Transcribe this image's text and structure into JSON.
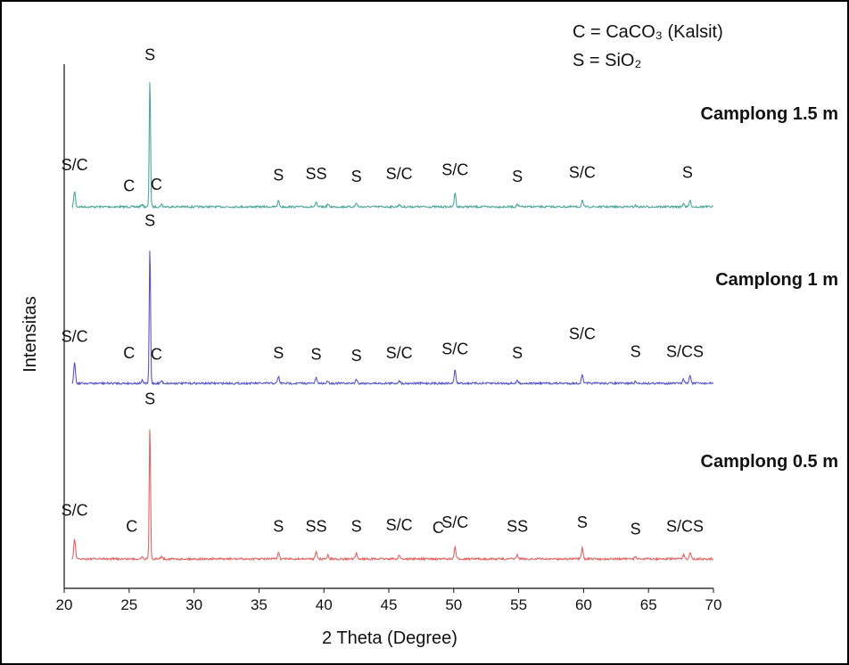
{
  "chart_data": {
    "type": "line",
    "xlabel": "2 Theta (Degree)",
    "ylabel": "Intensitas",
    "xlim": [
      20,
      70
    ],
    "x_ticks": [
      "20",
      "25",
      "30",
      "35",
      "40",
      "45",
      "50",
      "55",
      "60",
      "65",
      "70"
    ],
    "legend_lines": [
      "C = CaCO₃ (Kalsit)",
      "S = SiO₂"
    ],
    "series": [
      {
        "name": "Camplong 1.5 m",
        "color": "#4ca89a",
        "peaks": [
          {
            "x": 20.8,
            "h": 0.12
          },
          {
            "x": 26.0,
            "h": 0.02
          },
          {
            "x": 26.6,
            "h": 1.0
          },
          {
            "x": 27.5,
            "h": 0.02
          },
          {
            "x": 36.5,
            "h": 0.05
          },
          {
            "x": 39.4,
            "h": 0.03
          },
          {
            "x": 40.3,
            "h": 0.02
          },
          {
            "x": 42.5,
            "h": 0.03
          },
          {
            "x": 45.8,
            "h": 0.02
          },
          {
            "x": 50.1,
            "h": 0.11
          },
          {
            "x": 54.9,
            "h": 0.02
          },
          {
            "x": 59.9,
            "h": 0.05
          },
          {
            "x": 64.0,
            "h": 0.01
          },
          {
            "x": 67.7,
            "h": 0.03
          },
          {
            "x": 68.2,
            "h": 0.05
          }
        ],
        "annotations": [
          {
            "x": 20.8,
            "text": "S/C",
            "h": 0.28
          },
          {
            "x": 25.0,
            "text": "C",
            "h": 0.12
          },
          {
            "x": 27.1,
            "text": "C",
            "h": 0.13
          },
          {
            "x": 26.6,
            "text": "S",
            "h": 1.12
          },
          {
            "x": 36.5,
            "text": "S",
            "h": 0.2
          },
          {
            "x": 39.4,
            "text": "SS",
            "h": 0.21
          },
          {
            "x": 42.5,
            "text": "S",
            "h": 0.19
          },
          {
            "x": 45.8,
            "text": "S/C",
            "h": 0.21
          },
          {
            "x": 50.1,
            "text": "S/C",
            "h": 0.24
          },
          {
            "x": 54.9,
            "text": "S",
            "h": 0.19
          },
          {
            "x": 59.9,
            "text": "S/C",
            "h": 0.22
          },
          {
            "x": 68.0,
            "text": "S",
            "h": 0.22
          }
        ]
      },
      {
        "name": "Camplong 1 m",
        "color": "#5a55c8",
        "peaks": [
          {
            "x": 20.8,
            "h": 0.16
          },
          {
            "x": 26.0,
            "h": 0.02
          },
          {
            "x": 26.6,
            "h": 1.0
          },
          {
            "x": 27.5,
            "h": 0.02
          },
          {
            "x": 36.5,
            "h": 0.05
          },
          {
            "x": 39.4,
            "h": 0.04
          },
          {
            "x": 40.3,
            "h": 0.02
          },
          {
            "x": 42.5,
            "h": 0.03
          },
          {
            "x": 45.8,
            "h": 0.02
          },
          {
            "x": 50.1,
            "h": 0.1
          },
          {
            "x": 54.9,
            "h": 0.02
          },
          {
            "x": 59.9,
            "h": 0.06
          },
          {
            "x": 64.0,
            "h": 0.01
          },
          {
            "x": 67.7,
            "h": 0.03
          },
          {
            "x": 68.2,
            "h": 0.06
          }
        ],
        "annotations": [
          {
            "x": 20.8,
            "text": "S/C",
            "h": 0.3
          },
          {
            "x": 25.0,
            "text": "C",
            "h": 0.18
          },
          {
            "x": 27.1,
            "text": "C",
            "h": 0.17
          },
          {
            "x": 26.6,
            "text": "S",
            "h": 1.14
          },
          {
            "x": 36.5,
            "text": "S",
            "h": 0.18
          },
          {
            "x": 39.4,
            "text": "S",
            "h": 0.17
          },
          {
            "x": 42.5,
            "text": "S",
            "h": 0.16
          },
          {
            "x": 45.8,
            "text": "S/C",
            "h": 0.18
          },
          {
            "x": 50.1,
            "text": "S/C",
            "h": 0.21
          },
          {
            "x": 54.9,
            "text": "S",
            "h": 0.18
          },
          {
            "x": 59.9,
            "text": "S/C",
            "h": 0.32
          },
          {
            "x": 64.0,
            "text": "S",
            "h": 0.19
          },
          {
            "x": 67.8,
            "text": "S/CS",
            "h": 0.19
          }
        ]
      },
      {
        "name": "Camplong 0.5 m",
        "color": "#e26464",
        "peaks": [
          {
            "x": 20.8,
            "h": 0.15
          },
          {
            "x": 26.0,
            "h": 0.02
          },
          {
            "x": 26.6,
            "h": 1.0
          },
          {
            "x": 27.5,
            "h": 0.02
          },
          {
            "x": 36.5,
            "h": 0.05
          },
          {
            "x": 39.4,
            "h": 0.06
          },
          {
            "x": 40.3,
            "h": 0.03
          },
          {
            "x": 42.5,
            "h": 0.04
          },
          {
            "x": 45.8,
            "h": 0.03
          },
          {
            "x": 50.1,
            "h": 0.09
          },
          {
            "x": 54.9,
            "h": 0.03
          },
          {
            "x": 59.9,
            "h": 0.08
          },
          {
            "x": 64.0,
            "h": 0.02
          },
          {
            "x": 67.7,
            "h": 0.03
          },
          {
            "x": 68.2,
            "h": 0.05
          }
        ],
        "annotations": [
          {
            "x": 20.8,
            "text": "S/C",
            "h": 0.32
          },
          {
            "x": 25.2,
            "text": "C",
            "h": 0.2
          },
          {
            "x": 26.6,
            "text": "S",
            "h": 1.14
          },
          {
            "x": 36.5,
            "text": "S",
            "h": 0.2
          },
          {
            "x": 39.4,
            "text": "SS",
            "h": 0.2
          },
          {
            "x": 42.5,
            "text": "S",
            "h": 0.2
          },
          {
            "x": 45.8,
            "text": "S/C",
            "h": 0.21
          },
          {
            "x": 48.8,
            "text": "C",
            "h": 0.19
          },
          {
            "x": 50.1,
            "text": "S/C",
            "h": 0.23
          },
          {
            "x": 54.9,
            "text": "SS",
            "h": 0.2
          },
          {
            "x": 59.9,
            "text": "S",
            "h": 0.23
          },
          {
            "x": 64.0,
            "text": "S",
            "h": 0.18
          },
          {
            "x": 67.8,
            "text": "S/CS",
            "h": 0.2
          }
        ]
      }
    ]
  }
}
